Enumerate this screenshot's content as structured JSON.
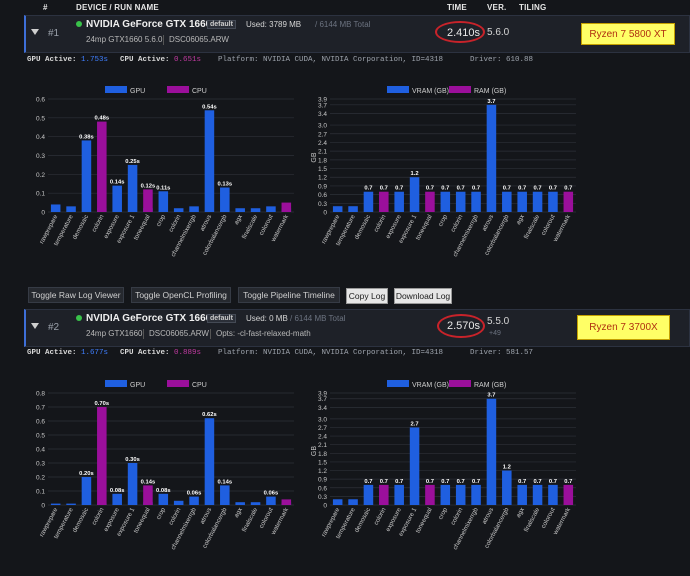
{
  "header": {
    "hash": "#",
    "device": "DEVICE / RUN NAME",
    "time": "TIME",
    "ver": "VER.",
    "tiling": "TILING"
  },
  "runs": [
    {
      "num": "#1",
      "device": "NVIDIA GeForce GTX 1660",
      "badge": "default",
      "used": "Used: 3789 MB",
      "total": "/ 6144 MB Total",
      "run_name": "24mp GTX1660 5.6.0",
      "file": "DSC06065.ARW",
      "opts": "",
      "time": "2.410s",
      "ver": "5.6.0",
      "ver_sub": "",
      "note": "Ryzen 7 5800 XT",
      "gpu_label": "GPU Active:",
      "gpu_val": "1.753s",
      "cpu_label": "CPU Active:",
      "cpu_val": "0.651s",
      "platform": "Platform: NVIDIA CUDA, NVIDIA Corporation, ID=4318",
      "driver": "Driver: 610.88"
    },
    {
      "num": "#2",
      "device": "NVIDIA GeForce GTX 1660",
      "badge": "default",
      "used": "Used: 0 MB",
      "total": "/ 6144 MB Total",
      "run_name": "24mp GTX1660",
      "file": "DSC06065.ARW",
      "opts": "Opts: -cl-fast-relaxed-math",
      "time": "2.570s",
      "ver": "5.5.0",
      "ver_sub": "+49",
      "note": "Ryzen 7 3700X",
      "gpu_label": "GPU Active:",
      "gpu_val": "1.677s",
      "cpu_label": "CPU Active:",
      "cpu_val": "0.889s",
      "platform": "Platform: NVIDIA CUDA, NVIDIA Corporation, ID=4318",
      "driver": "Driver: 581.57"
    }
  ],
  "buttons": {
    "raw_log": "Toggle Raw Log Viewer",
    "opencl": "Toggle OpenCL Profiling",
    "pipeline": "Toggle Pipeline Timeline",
    "copy": "Copy Log",
    "download": "Download Log"
  },
  "colors": {
    "gpu": "#1f5fe0",
    "cpu": "#9b0f9b"
  },
  "chart_data": [
    {
      "type": "bar",
      "run": "#1",
      "categories": [
        "rawprepare",
        "temperature",
        "demosaic",
        "colorin",
        "exposure",
        "exposure 1",
        "toneequal",
        "crop",
        "colorin",
        "channelmixerrgb",
        "atrous",
        "colorbalancergb",
        "agx",
        "finalscale",
        "colorout",
        "watermark"
      ],
      "series": [
        {
          "name": "GPU",
          "values": [
            0.04,
            0.03,
            0.38,
            0.02,
            0.14,
            0.25,
            0.02,
            0.11,
            0.02,
            0.03,
            0.54,
            0.13,
            0.02,
            0.02,
            0.03,
            0.02
          ]
        },
        {
          "name": "CPU",
          "values": [
            0,
            0,
            0,
            0.48,
            0,
            0,
            0.12,
            0,
            0,
            0,
            0,
            0,
            0,
            0,
            0,
            0.05
          ]
        }
      ],
      "data_labels": [
        "",
        "",
        "0.38s",
        "0.48s",
        "0.14s",
        "0.25s",
        "0.12s",
        "0.11s",
        "",
        "",
        "0.54s",
        "0.13s",
        "",
        "",
        "",
        ""
      ],
      "ylim": [
        0,
        0.6
      ],
      "yticks": [
        "0",
        "0.1",
        "0.2",
        "0.3",
        "0.4",
        "0.5",
        "0.6"
      ],
      "ylabel": "",
      "grid": true,
      "legend": "top"
    },
    {
      "type": "bar",
      "run": "#1",
      "categories": [
        "rawprepare",
        "temperature",
        "demosaic",
        "colorin",
        "exposure",
        "exposure 1",
        "toneequal",
        "crop",
        "colorin",
        "channelmixerrgb",
        "atrous",
        "colorbalancergb",
        "agx",
        "finalscale",
        "colorout",
        "watermark"
      ],
      "series": [
        {
          "name": "VRAM (GB)",
          "values": [
            0.2,
            0.2,
            0.7,
            0,
            0.7,
            1.2,
            0,
            0.7,
            0.7,
            0.7,
            3.7,
            0.7,
            0.7,
            0.7,
            0.7,
            0
          ]
        },
        {
          "name": "RAM (GB)",
          "values": [
            0,
            0,
            0,
            0.7,
            0,
            0,
            0.7,
            0,
            0,
            0,
            0,
            0,
            0,
            0,
            0,
            0.7
          ]
        }
      ],
      "data_labels": [
        "",
        "",
        "0.7",
        "0.7",
        "0.7",
        "1.2",
        "0.7",
        "0.7",
        "0.7",
        "0.7",
        "3.7",
        "0.7",
        "0.7",
        "0.7",
        "0.7",
        "0.7"
      ],
      "ylim": [
        0,
        3.9
      ],
      "yticks": [
        "0",
        "0.3",
        "0.6",
        "0.9",
        "1.2",
        "1.5",
        "1.8",
        "2.1",
        "2.4",
        "2.7",
        "3.0",
        "3.4",
        "3.7",
        "3.9"
      ],
      "ylabel": "GB",
      "grid": true,
      "legend": "top"
    },
    {
      "type": "bar",
      "run": "#2",
      "categories": [
        "rawprepare",
        "temperature",
        "demosaic",
        "colorin",
        "exposure",
        "exposure 1",
        "toneequal",
        "crop",
        "colorin",
        "channelmixerrgb",
        "atrous",
        "colorbalancergb",
        "agx",
        "finalscale",
        "colorout",
        "watermark"
      ],
      "series": [
        {
          "name": "GPU",
          "values": [
            0.01,
            0.01,
            0.2,
            0.01,
            0.08,
            0.3,
            0.02,
            0.08,
            0.03,
            0.06,
            0.62,
            0.14,
            0.02,
            0.02,
            0.06,
            0.02
          ]
        },
        {
          "name": "CPU",
          "values": [
            0,
            0,
            0,
            0.7,
            0,
            0,
            0.14,
            0,
            0,
            0,
            0,
            0,
            0,
            0,
            0,
            0.04
          ]
        }
      ],
      "data_labels": [
        "",
        "",
        "0.20s",
        "0.70s",
        "0.08s",
        "0.30s",
        "0.14s",
        "0.08s",
        "",
        "0.06s",
        "0.62s",
        "0.14s",
        "",
        "",
        "0.06s",
        ""
      ],
      "ylim": [
        0,
        0.8
      ],
      "yticks": [
        "0",
        "0.1",
        "0.2",
        "0.3",
        "0.4",
        "0.5",
        "0.6",
        "0.7",
        "0.8"
      ],
      "ylabel": "",
      "grid": true,
      "legend": "top"
    },
    {
      "type": "bar",
      "run": "#2",
      "categories": [
        "rawprepare",
        "temperature",
        "demosaic",
        "colorin",
        "exposure",
        "exposure 1",
        "toneequal",
        "crop",
        "colorin",
        "channelmixerrgb",
        "atrous",
        "colorbalancergb",
        "agx",
        "finalscale",
        "colorout",
        "watermark"
      ],
      "series": [
        {
          "name": "VRAM (GB)",
          "values": [
            0.2,
            0.2,
            0.7,
            0,
            0.7,
            2.7,
            0,
            0.7,
            0.7,
            0.7,
            3.7,
            1.2,
            0.7,
            0.7,
            0.7,
            0
          ]
        },
        {
          "name": "RAM (GB)",
          "values": [
            0,
            0,
            0,
            0.7,
            0,
            0,
            0.7,
            0,
            0,
            0,
            0,
            0,
            0,
            0,
            0,
            0.7
          ]
        }
      ],
      "data_labels": [
        "",
        "",
        "0.7",
        "0.7",
        "0.7",
        "2.7",
        "0.7",
        "0.7",
        "0.7",
        "0.7",
        "3.7",
        "1.2",
        "0.7",
        "0.7",
        "0.7",
        "0.7"
      ],
      "ylim": [
        0,
        3.9
      ],
      "yticks": [
        "0",
        "0.3",
        "0.6",
        "0.9",
        "1.2",
        "1.5",
        "1.8",
        "2.1",
        "2.4",
        "2.7",
        "3.0",
        "3.4",
        "3.7",
        "3.9"
      ],
      "ylabel": "GB",
      "grid": true,
      "legend": "top"
    }
  ]
}
